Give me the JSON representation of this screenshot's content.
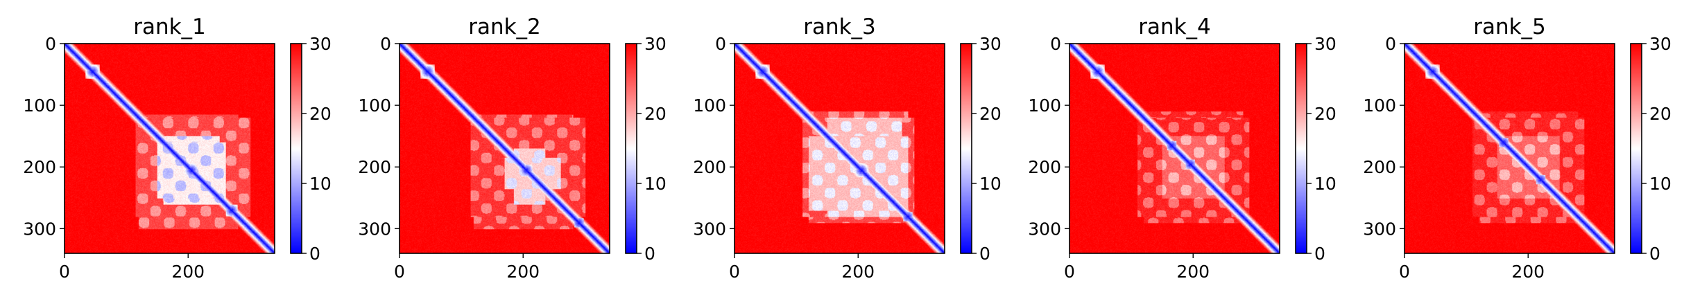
{
  "chart_data": [
    {
      "type": "heatmap",
      "title": "rank_1",
      "xlim": [
        0,
        340
      ],
      "ylim": [
        340,
        0
      ],
      "xticks": [
        0,
        200
      ],
      "yticks": [
        0,
        100,
        200,
        300
      ],
      "colorbar": {
        "min": 0,
        "max": 30,
        "ticks": [
          0,
          10,
          20,
          30
        ],
        "colormap": "bwr",
        "colors": [
          "#0000ff",
          "#ffffff",
          "#ff0000"
        ]
      },
      "grid": false,
      "matrix": {
        "size": 340,
        "diagonal_value": 0,
        "background_value": 30,
        "diagonal_blobs": [
          [
            45,
            6
          ],
          [
            205,
            7
          ],
          [
            270,
            5
          ]
        ],
        "low_regions": [
          {
            "x": [
              150,
              260
            ],
            "y": [
              160,
              250
            ],
            "value": 14
          },
          {
            "x": [
              115,
              300
            ],
            "y": [
              120,
              280
            ],
            "value": 24
          }
        ]
      }
    },
    {
      "type": "heatmap",
      "title": "rank_2",
      "xlim": [
        0,
        340
      ],
      "ylim": [
        340,
        0
      ],
      "xticks": [
        0,
        200
      ],
      "yticks": [
        0,
        100,
        200,
        300
      ],
      "colorbar": {
        "min": 0,
        "max": 30,
        "ticks": [
          0,
          10,
          20,
          30
        ],
        "colormap": "bwr",
        "colors": [
          "#0000ff",
          "#ffffff",
          "#ff0000"
        ]
      },
      "grid": false,
      "matrix": {
        "size": 340,
        "diagonal_value": 0,
        "background_value": 30,
        "diagonal_blobs": [
          [
            45,
            6
          ],
          [
            205,
            5
          ],
          [
            290,
            4
          ]
        ],
        "low_regions": [
          {
            "x": [
              170,
              260
            ],
            "y": [
              185,
              235
            ],
            "value": 16
          },
          {
            "x": [
              115,
              300
            ],
            "y": [
              120,
              280
            ],
            "value": 25
          }
        ]
      }
    },
    {
      "type": "heatmap",
      "title": "rank_3",
      "xlim": [
        0,
        340
      ],
      "ylim": [
        340,
        0
      ],
      "xticks": [
        0,
        200
      ],
      "yticks": [
        0,
        100,
        200,
        300
      ],
      "colorbar": {
        "min": 0,
        "max": 30,
        "ticks": [
          0,
          10,
          20,
          30
        ],
        "colormap": "bwr",
        "colors": [
          "#0000ff",
          "#ffffff",
          "#ff0000"
        ]
      },
      "grid": false,
      "matrix": {
        "size": 340,
        "diagonal_value": 0,
        "background_value": 30,
        "diagonal_blobs": [
          [
            45,
            6
          ],
          [
            205,
            6
          ],
          [
            280,
            4
          ]
        ],
        "low_regions": [
          {
            "x": [
              120,
              280
            ],
            "y": [
              150,
              270
            ],
            "value": 17
          },
          {
            "x": [
              110,
              290
            ],
            "y": [
              120,
              280
            ],
            "value": 24
          }
        ]
      }
    },
    {
      "type": "heatmap",
      "title": "rank_4",
      "xlim": [
        0,
        340
      ],
      "ylim": [
        340,
        0
      ],
      "xticks": [
        0,
        200
      ],
      "yticks": [
        0,
        100,
        200,
        300
      ],
      "colorbar": {
        "min": 0,
        "max": 30,
        "ticks": [
          0,
          10,
          20,
          30
        ],
        "colormap": "bwr",
        "colors": [
          "#0000ff",
          "#ffffff",
          "#ff0000"
        ]
      },
      "grid": false,
      "matrix": {
        "size": 340,
        "diagonal_value": 0,
        "background_value": 30,
        "diagonal_blobs": [
          [
            45,
            6
          ],
          [
            165,
            4
          ],
          [
            195,
            4
          ]
        ],
        "low_regions": [
          {
            "x": [
              150,
              250
            ],
            "y": [
              150,
              250
            ],
            "value": 22
          },
          {
            "x": [
              110,
              290
            ],
            "y": [
              120,
              280
            ],
            "value": 26
          }
        ]
      }
    },
    {
      "type": "heatmap",
      "title": "rank_5",
      "xlim": [
        0,
        340
      ],
      "ylim": [
        340,
        0
      ],
      "xticks": [
        0,
        200
      ],
      "yticks": [
        0,
        100,
        200,
        300
      ],
      "colorbar": {
        "min": 0,
        "max": 30,
        "ticks": [
          0,
          10,
          20,
          30
        ],
        "colormap": "bwr",
        "colors": [
          "#0000ff",
          "#ffffff",
          "#ff0000"
        ]
      },
      "grid": false,
      "matrix": {
        "size": 340,
        "diagonal_value": 0,
        "background_value": 30,
        "diagonal_blobs": [
          [
            45,
            6
          ],
          [
            160,
            4
          ],
          [
            220,
            4
          ]
        ],
        "low_regions": [
          {
            "x": [
              150,
              250
            ],
            "y": [
              150,
              250
            ],
            "value": 22
          },
          {
            "x": [
              110,
              290
            ],
            "y": [
              120,
              280
            ],
            "value": 26
          }
        ]
      }
    }
  ]
}
